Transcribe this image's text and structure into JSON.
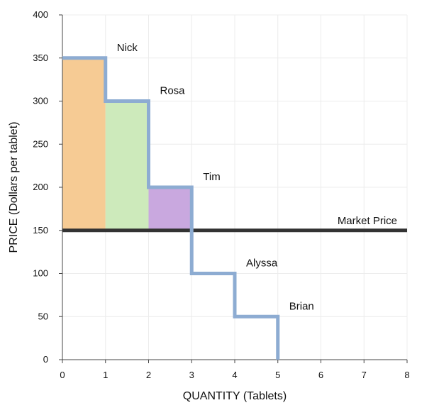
{
  "chart_data": {
    "type": "line",
    "title": "",
    "xlabel": "QUANTITY (Tablets)",
    "ylabel": "PRICE (Dollars per tablet)",
    "xlim": [
      0,
      8
    ],
    "ylim": [
      0,
      400
    ],
    "x_ticks": [
      0,
      1,
      2,
      3,
      4,
      5,
      6,
      7,
      8
    ],
    "y_ticks": [
      0,
      50,
      100,
      150,
      200,
      250,
      300,
      350,
      400
    ],
    "grid": true,
    "demand_steps": [
      {
        "name": "Nick",
        "x_start": 0,
        "x_end": 1,
        "price": 350
      },
      {
        "name": "Rosa",
        "x_start": 1,
        "x_end": 2,
        "price": 300
      },
      {
        "name": "Tim",
        "x_start": 2,
        "x_end": 3,
        "price": 200
      },
      {
        "name": "Alyssa",
        "x_start": 3,
        "x_end": 4,
        "price": 100
      },
      {
        "name": "Brian",
        "x_start": 4,
        "x_end": 5,
        "price": 50
      }
    ],
    "market_price": {
      "label": "Market Price",
      "value": 150
    },
    "surplus_areas": [
      {
        "buyer": "Nick",
        "x_start": 0,
        "x_end": 1,
        "from": 150,
        "to": 350,
        "color": "#f6cb94"
      },
      {
        "buyer": "Rosa",
        "x_start": 1,
        "x_end": 2,
        "from": 150,
        "to": 300,
        "color": "#cdeabb"
      },
      {
        "buyer": "Tim",
        "x_start": 2,
        "x_end": 3,
        "from": 150,
        "to": 200,
        "color": "#c9a8df"
      }
    ],
    "colors": {
      "demand": "#8dacd2",
      "market_price": "#333333",
      "grid": "#ececec",
      "axis": "#444444"
    }
  }
}
